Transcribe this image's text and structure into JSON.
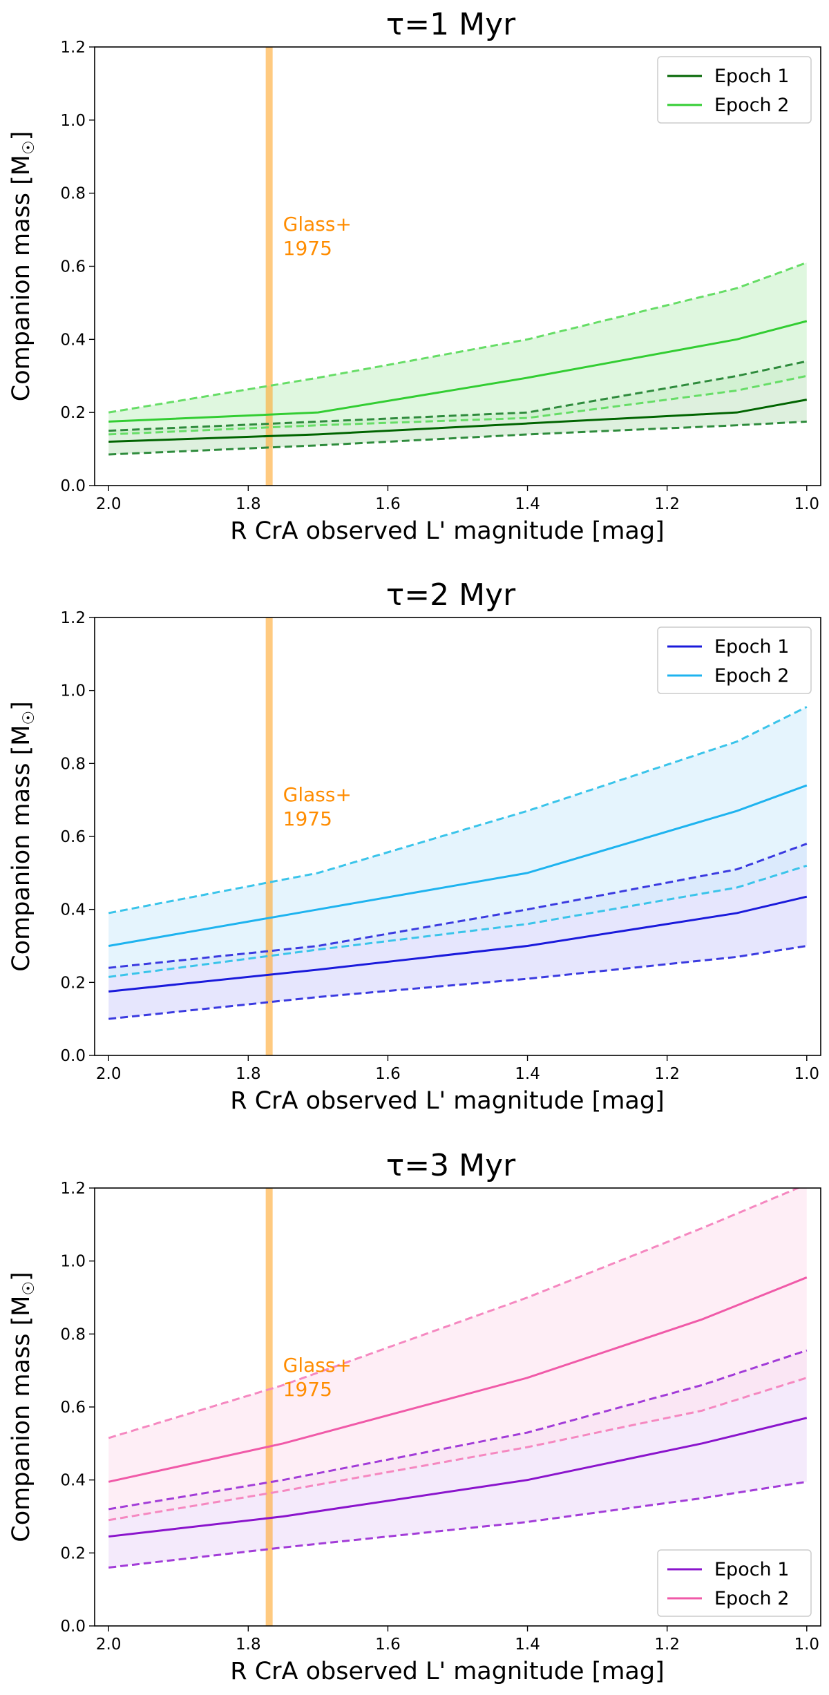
{
  "chart_data": [
    {
      "type": "line",
      "title": "τ=1 Myr",
      "xlabel": "R CrA observed L' magnitude [mag]",
      "ylabel": "Companion mass [M",
      "ylabel_sub": "☉",
      "ylabel_close": "]",
      "xlim": [
        2.02,
        0.98
      ],
      "ylim": [
        0.0,
        1.2
      ],
      "x_ticks": [
        2.0,
        1.8,
        1.6,
        1.4,
        1.2,
        1.0
      ],
      "x_tick_labels": [
        "2.0",
        "1.8",
        "1.6",
        "1.4",
        "1.2",
        "1.0"
      ],
      "y_ticks": [
        0.0,
        0.2,
        0.4,
        0.6,
        0.8,
        1.0,
        1.2
      ],
      "y_tick_labels": [
        "0.0",
        "0.2",
        "0.4",
        "0.6",
        "0.8",
        "1.0",
        "1.2"
      ],
      "legend_position": "top-right",
      "annotation": {
        "lines": [
          "Glass+",
          "1975"
        ],
        "x": 1.77,
        "color": "#ff8c00"
      },
      "reference_line": {
        "x": 1.77,
        "color": "#ffa62b"
      },
      "series": [
        {
          "name": "Epoch 1",
          "color": "#006400",
          "dash_color": "#2e8b3c",
          "fill": "#c8e6c8",
          "x": [
            2.0,
            1.7,
            1.4,
            1.1,
            1.0
          ],
          "y": [
            0.12,
            0.14,
            0.17,
            0.2,
            0.235
          ],
          "upper": [
            0.15,
            0.175,
            0.2,
            0.3,
            0.34
          ],
          "lower": [
            0.085,
            0.11,
            0.14,
            0.165,
            0.175
          ]
        },
        {
          "name": "Epoch 2",
          "color": "#32cd32",
          "dash_color": "#66dd66",
          "fill": "#c9f2c9",
          "x": [
            2.0,
            1.7,
            1.4,
            1.1,
            1.0
          ],
          "y": [
            0.175,
            0.2,
            0.295,
            0.4,
            0.45
          ],
          "upper": [
            0.2,
            0.295,
            0.4,
            0.54,
            0.61
          ],
          "lower": [
            0.14,
            0.165,
            0.185,
            0.26,
            0.3
          ]
        }
      ]
    },
    {
      "type": "line",
      "title": "τ=2 Myr",
      "xlabel": "R CrA observed L' magnitude [mag]",
      "ylabel": "Companion mass [M",
      "ylabel_sub": "☉",
      "ylabel_close": "]",
      "xlim": [
        2.02,
        0.98
      ],
      "ylim": [
        0.0,
        1.2
      ],
      "x_ticks": [
        2.0,
        1.8,
        1.6,
        1.4,
        1.2,
        1.0
      ],
      "x_tick_labels": [
        "2.0",
        "1.8",
        "1.6",
        "1.4",
        "1.2",
        "1.0"
      ],
      "y_ticks": [
        0.0,
        0.2,
        0.4,
        0.6,
        0.8,
        1.0,
        1.2
      ],
      "y_tick_labels": [
        "0.0",
        "0.2",
        "0.4",
        "0.6",
        "0.8",
        "1.0",
        "1.2"
      ],
      "legend_position": "top-right",
      "annotation": {
        "lines": [
          "Glass+",
          "1975"
        ],
        "x": 1.77,
        "color": "#ff8c00"
      },
      "reference_line": {
        "x": 1.77,
        "color": "#ffa62b"
      },
      "series": [
        {
          "name": "Epoch 1",
          "color": "#1a1adb",
          "dash_color": "#3a3ae0",
          "fill": "#d6d6fb",
          "x": [
            2.0,
            1.7,
            1.4,
            1.1,
            1.0
          ],
          "y": [
            0.175,
            0.235,
            0.3,
            0.39,
            0.435
          ],
          "upper": [
            0.24,
            0.3,
            0.4,
            0.51,
            0.58
          ],
          "lower": [
            0.1,
            0.16,
            0.21,
            0.27,
            0.3
          ]
        },
        {
          "name": "Epoch 2",
          "color": "#1eb3ef",
          "dash_color": "#3ac4ea",
          "fill": "#d4ecfb",
          "x": [
            2.0,
            1.7,
            1.4,
            1.1,
            1.0
          ],
          "y": [
            0.3,
            0.4,
            0.5,
            0.67,
            0.74
          ],
          "upper": [
            0.39,
            0.5,
            0.67,
            0.86,
            0.955
          ],
          "lower": [
            0.215,
            0.29,
            0.36,
            0.46,
            0.52
          ]
        }
      ]
    },
    {
      "type": "line",
      "title": "τ=3 Myr",
      "xlabel": "R CrA observed L' magnitude [mag]",
      "ylabel": "Companion mass [M",
      "ylabel_sub": "☉",
      "ylabel_close": "]",
      "xlim": [
        2.02,
        0.98
      ],
      "ylim": [
        0.0,
        1.2
      ],
      "x_ticks": [
        2.0,
        1.8,
        1.6,
        1.4,
        1.2,
        1.0
      ],
      "x_tick_labels": [
        "2.0",
        "1.8",
        "1.6",
        "1.4",
        "1.2",
        "1.0"
      ],
      "y_ticks": [
        0.0,
        0.2,
        0.4,
        0.6,
        0.8,
        1.0,
        1.2
      ],
      "y_tick_labels": [
        "0.0",
        "0.2",
        "0.4",
        "0.6",
        "0.8",
        "1.0",
        "1.2"
      ],
      "legend_position": "bottom-right",
      "annotation": {
        "lines": [
          "Glass+",
          "1975"
        ],
        "x": 1.77,
        "color": "#ff8c00"
      },
      "reference_line": {
        "x": 1.77,
        "color": "#ffa62b"
      },
      "series": [
        {
          "name": "Epoch 1",
          "color": "#8a14cc",
          "dash_color": "#a23cd8",
          "fill": "#ecdcf8",
          "x": [
            2.0,
            1.75,
            1.4,
            1.15,
            1.0
          ],
          "y": [
            0.245,
            0.3,
            0.4,
            0.5,
            0.57
          ],
          "upper": [
            0.32,
            0.4,
            0.53,
            0.66,
            0.755
          ],
          "lower": [
            0.16,
            0.215,
            0.285,
            0.35,
            0.395
          ]
        },
        {
          "name": "Epoch 2",
          "color": "#f05aa8",
          "dash_color": "#f588c0",
          "fill": "#fde2f0",
          "x": [
            2.0,
            1.75,
            1.4,
            1.15,
            1.0
          ],
          "y": [
            0.395,
            0.5,
            0.68,
            0.84,
            0.955
          ],
          "upper": [
            0.515,
            0.66,
            0.9,
            1.09,
            1.21
          ],
          "lower": [
            0.29,
            0.37,
            0.49,
            0.59,
            0.68
          ]
        }
      ]
    }
  ]
}
